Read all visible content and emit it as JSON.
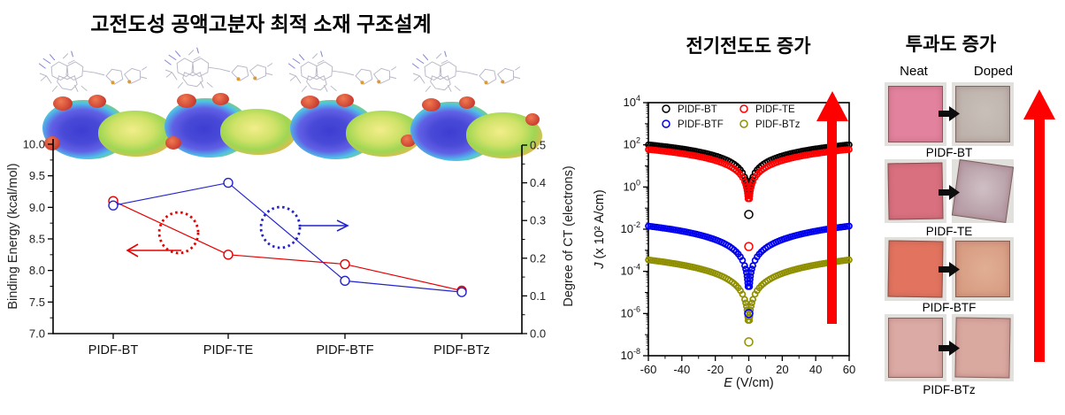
{
  "figure": {
    "panel_left_title": "고전도성 공액고분자 최적 소재 구조설계",
    "panel_middle_title": "전기전도도 증가",
    "panel_right_title": "투과도 증가"
  },
  "panel_right": {
    "col_neat": "Neat",
    "col_doped": "Doped",
    "arrow_color": "#ff0000",
    "rows": [
      {
        "label": "PIDF-BT",
        "neat_color": "#e2829e",
        "doped_color": "#bdb3ac"
      },
      {
        "label": "PIDF-TE",
        "neat_color": "#d9707f",
        "doped_color": "#b89fa8"
      },
      {
        "label": "PIDF-BTF",
        "neat_color": "#e2745f",
        "doped_color": "#d89d83"
      },
      {
        "label": "PIDF-BTz",
        "neat_color": "#dcaaa4",
        "doped_color": "#d9a89f"
      }
    ]
  },
  "chart_data": [
    {
      "type": "line",
      "title": "",
      "categories": [
        "PIDF-BT",
        "PIDF-TE",
        "PIDF-BTF",
        "PIDF-BTz"
      ],
      "series": [
        {
          "name": "Binding Energy",
          "axis": "left",
          "color": "#e60000",
          "values": [
            9.1,
            8.25,
            8.1,
            7.68
          ]
        },
        {
          "name": "Degree of CT",
          "axis": "right",
          "color": "#2424cc",
          "values": [
            0.34,
            0.4,
            0.14,
            0.11
          ]
        }
      ],
      "ylabel_left": "Binding Energy (kcal/mol)",
      "ylabel_right": "Degree of CT (electrons)",
      "ylim_left": [
        7.0,
        10.0
      ],
      "ytick_step_left": 0.5,
      "ylim_right": [
        0.0,
        0.5
      ],
      "ytick_step_right": 0.1,
      "grid": false,
      "annotations": [
        "red dotted circle with left arrow points red series to left axis",
        "blue dotted circle with right arrow points blue series to right axis"
      ]
    },
    {
      "type": "scatter",
      "xlabel": "E (V/cm)",
      "ylabel": "J (x 10² A/cm)",
      "xlim": [
        -60,
        60
      ],
      "xticks": [
        -60,
        -40,
        -20,
        0,
        20,
        40,
        60
      ],
      "yscale": "log",
      "ylim_exponents": [
        -8,
        4
      ],
      "ytick_exponents": [
        4,
        2,
        0,
        -2,
        -4,
        -6,
        -8
      ],
      "legend_position": "top-left",
      "grid": false,
      "series": [
        {
          "name": "PIDF-BT",
          "color": "#000000",
          "J_at_60": 100,
          "J_at_0": 0.05,
          "dip_power": 1.1
        },
        {
          "name": "PIDF-TE",
          "color": "#ff0000",
          "J_at_60": 60,
          "J_at_0": 0.0015,
          "dip_power": 1.1
        },
        {
          "name": "PIDF-BTF",
          "color": "#0000ee",
          "J_at_60": 0.014,
          "J_at_0": 1e-06,
          "dip_power": 1.35
        },
        {
          "name": "PIDF-BTz",
          "color": "#8f8f00",
          "J_at_60": 0.00035,
          "J_at_0": 4.5e-08,
          "dip_power": 1.35
        }
      ]
    }
  ]
}
